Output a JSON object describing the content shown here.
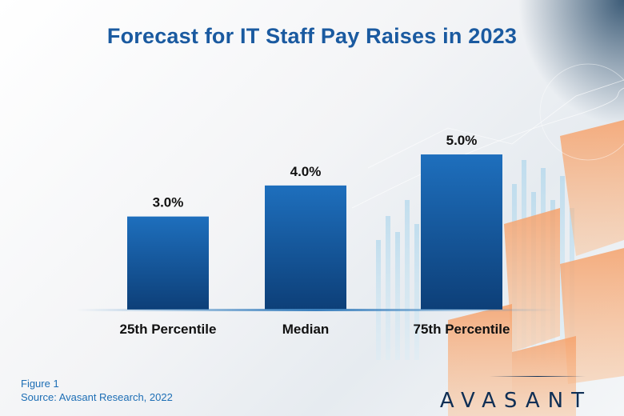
{
  "header": {
    "title": "Forecast for IT Staff Pay Raises in 2023"
  },
  "footer": {
    "figure_label": "Figure 1",
    "source": "Source: Avasant Research, 2022"
  },
  "brand": {
    "logo_text": "AVASANT",
    "color_title": "#1a5aa0",
    "color_bar_top": "#1e6fbd",
    "color_bar_bottom": "#0d3f78"
  },
  "chart_data": {
    "type": "bar",
    "title": "Forecast for IT Staff Pay Raises in 2023",
    "categories": [
      "25th Percentile",
      "Median",
      "75th Percentile"
    ],
    "values": [
      3.0,
      4.0,
      5.0
    ],
    "value_labels": [
      "3.0%",
      "4.0%",
      "5.0%"
    ],
    "unit": "%",
    "ylim": [
      0,
      6.6
    ],
    "grid": false,
    "legend": "none",
    "xlabel": "",
    "ylabel": ""
  }
}
